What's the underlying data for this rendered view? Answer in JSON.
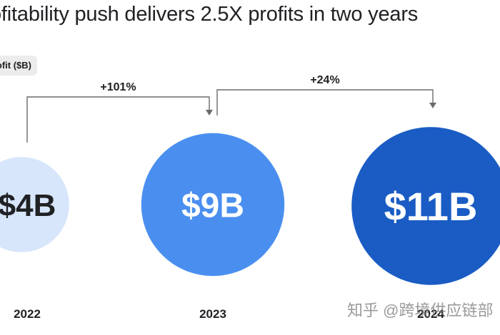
{
  "title": "ofitability push delivers 2.5X profits in two years",
  "unit_label": "ofit ($B)",
  "watermark": "知乎 @跨境供应链部",
  "chart_data": {
    "type": "bubble",
    "categories": [
      "2022",
      "2023",
      "2024"
    ],
    "values": [
      4,
      9,
      11
    ],
    "value_labels": [
      "$4B",
      "$9B",
      "$11B"
    ],
    "colors": [
      "#d7e6fb",
      "#4a8ff0",
      "#1a5cc4"
    ],
    "label_colors": [
      "#202124",
      "#ffffff",
      "#ffffff"
    ],
    "annotations": [
      {
        "from": "2022",
        "to": "2023",
        "text": "+101%"
      },
      {
        "from": "2023",
        "to": "2024",
        "text": "+24%"
      }
    ]
  }
}
